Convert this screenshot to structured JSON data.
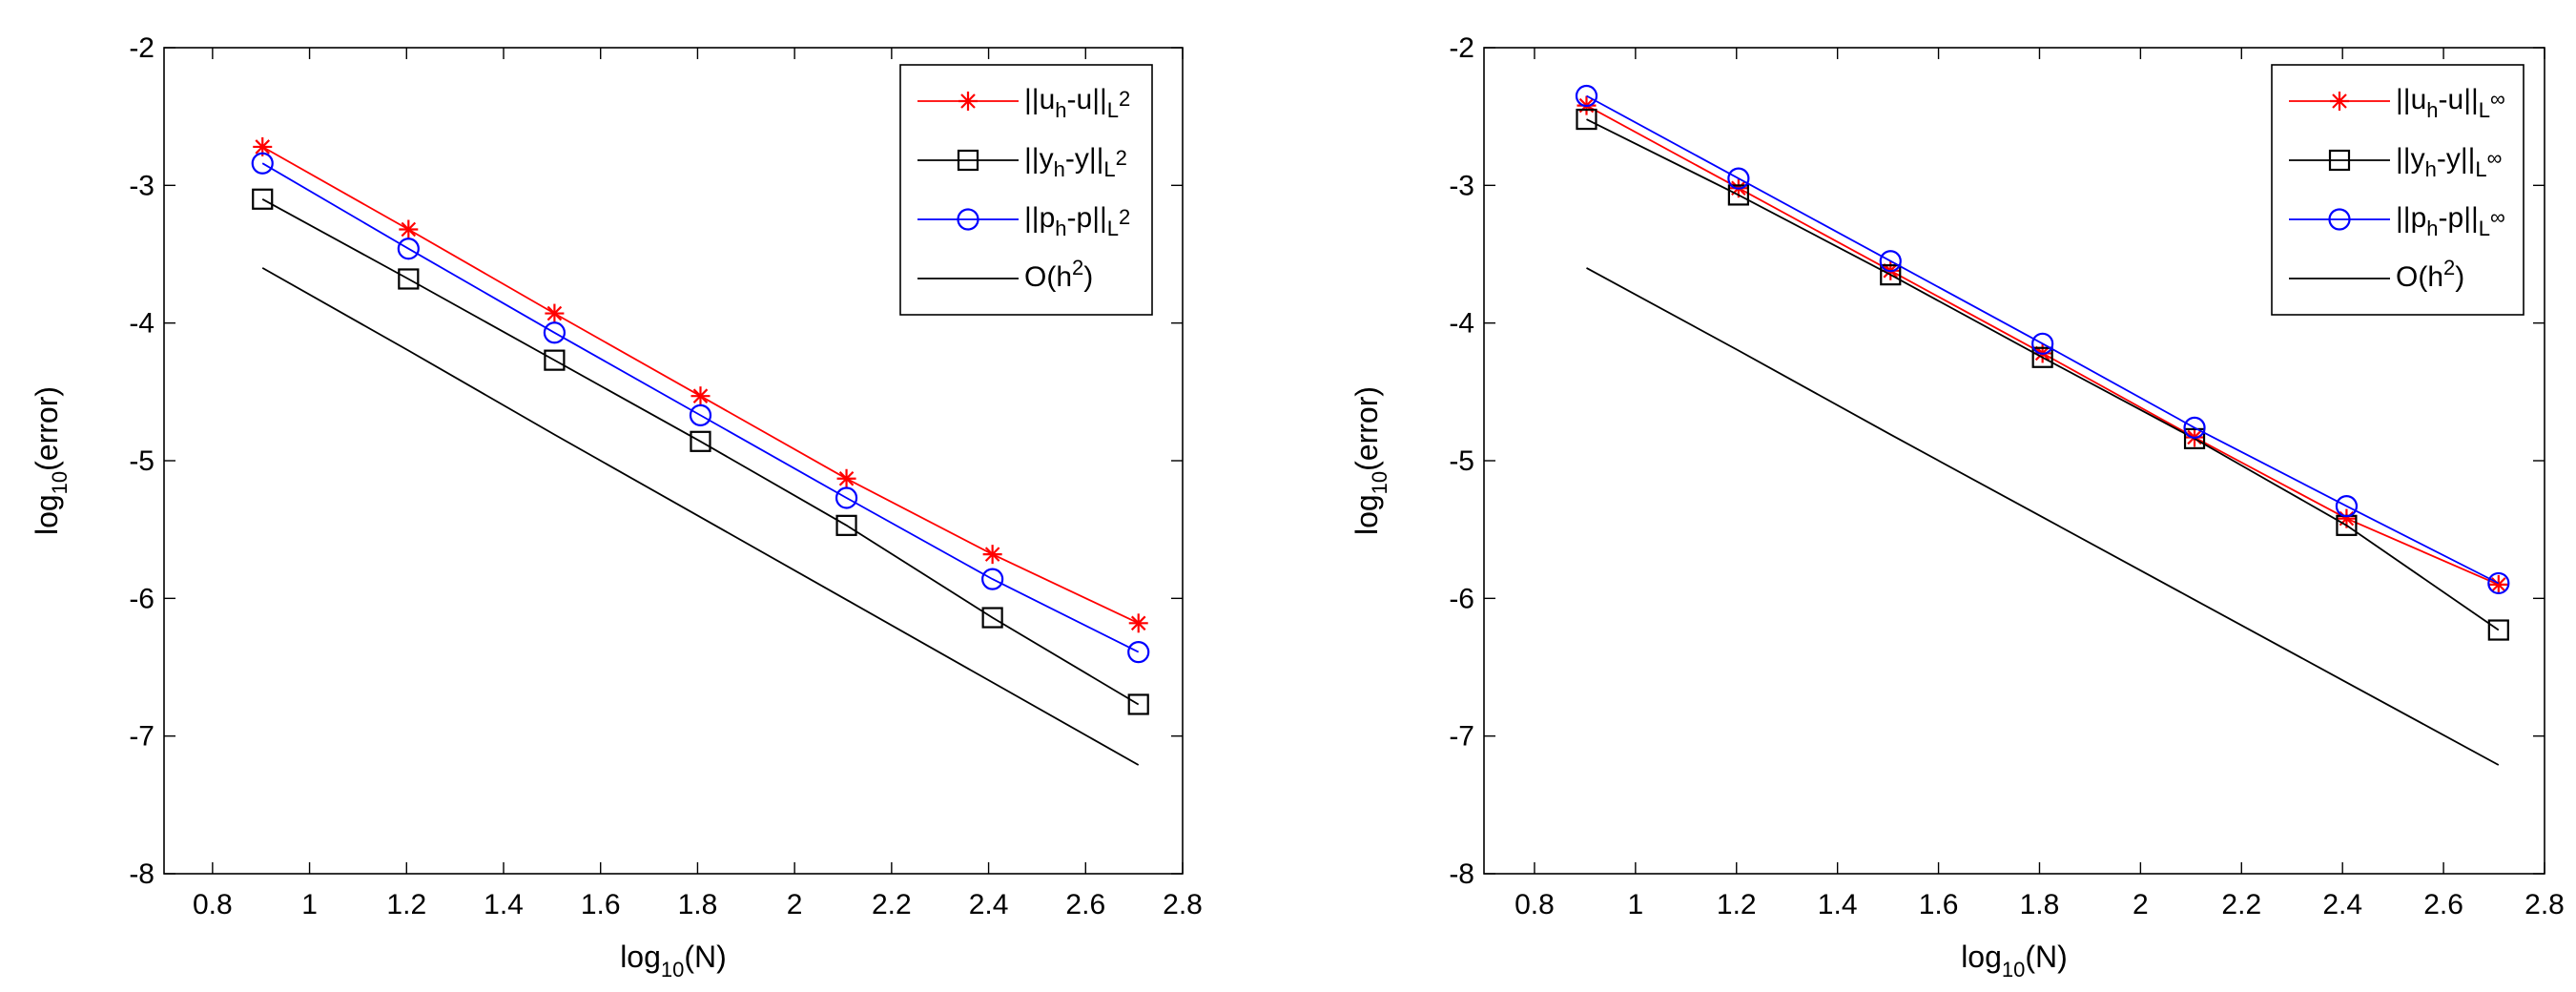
{
  "chart_data": [
    {
      "type": "line",
      "x": [
        0.903,
        1.204,
        1.505,
        1.806,
        2.107,
        2.408,
        2.709
      ],
      "xlim": [
        0.7,
        2.8
      ],
      "ylim": [
        -8,
        -2
      ],
      "xticks": [
        0.8,
        1,
        1.2,
        1.4,
        1.6,
        1.8,
        2,
        2.2,
        2.4,
        2.6,
        2.8
      ],
      "xtick_labels": [
        "0.8",
        "1",
        "1.2",
        "1.4",
        "1.6",
        "1.8",
        "2",
        "2.2",
        "2.4",
        "2.6",
        "2.8"
      ],
      "yticks": [
        -2,
        -3,
        -4,
        -5,
        -6,
        -7,
        -8
      ],
      "ytick_labels": [
        "-2",
        "-3",
        "-4",
        "-5",
        "-6",
        "-7",
        "-8"
      ],
      "xlabel": {
        "base": "log",
        "sub": "10",
        "rest": "(N)"
      },
      "ylabel": {
        "base": "log",
        "sub": "10",
        "rest": "(error)"
      },
      "grid": false,
      "legend_position": "top-right",
      "series": [
        {
          "name": "||u_h-u||_L2",
          "label_parts": [
            "||u",
            "h",
            "-u||",
            "L",
            "2"
          ],
          "color": "#ff0000",
          "marker": "asterisk",
          "values": [
            -2.72,
            -3.32,
            -3.93,
            -4.53,
            -5.13,
            -5.68,
            -6.18
          ]
        },
        {
          "name": "||y_h-y||_L2",
          "label_parts": [
            "||y",
            "h",
            "-y||",
            "L",
            "2"
          ],
          "color": "#000000",
          "marker": "square",
          "values": [
            -3.1,
            -3.68,
            -4.27,
            -4.86,
            -5.47,
            -6.14,
            -6.77
          ]
        },
        {
          "name": "||p_h-p||_L2",
          "label_parts": [
            "||p",
            "h",
            "-p||",
            "L",
            "2"
          ],
          "color": "#0000ff",
          "marker": "circle",
          "values": [
            -2.84,
            -3.46,
            -4.07,
            -4.67,
            -5.27,
            -5.86,
            -6.39
          ]
        },
        {
          "name": "O(h^2)",
          "label_parts": [
            "O(h",
            "2",
            ")"
          ],
          "color": "#000000",
          "marker": "none",
          "values": [
            -3.6,
            -4.2,
            -4.81,
            -5.41,
            -6.01,
            -6.61,
            -7.21
          ]
        }
      ]
    },
    {
      "type": "line",
      "x": [
        0.903,
        1.204,
        1.505,
        1.806,
        2.107,
        2.408,
        2.709
      ],
      "xlim": [
        0.7,
        2.8
      ],
      "ylim": [
        -8,
        -2
      ],
      "xticks": [
        0.8,
        1,
        1.2,
        1.4,
        1.6,
        1.8,
        2,
        2.2,
        2.4,
        2.6,
        2.8
      ],
      "xtick_labels": [
        "0.8",
        "1",
        "1.2",
        "1.4",
        "1.6",
        "1.8",
        "2",
        "2.2",
        "2.4",
        "2.6",
        "2.8"
      ],
      "yticks": [
        -2,
        -3,
        -4,
        -5,
        -6,
        -7,
        -8
      ],
      "ytick_labels": [
        "-2",
        "-3",
        "-4",
        "-5",
        "-6",
        "-7",
        "-8"
      ],
      "xlabel": {
        "base": "log",
        "sub": "10",
        "rest": "(N)"
      },
      "ylabel": {
        "base": "log",
        "sub": "10",
        "rest": "(error)"
      },
      "grid": false,
      "legend_position": "top-right",
      "series": [
        {
          "name": "||u_h-u||_L∞",
          "label_parts": [
            "||u",
            "h",
            "-u||",
            "L",
            "∞"
          ],
          "color": "#ff0000",
          "marker": "asterisk",
          "values": [
            -2.42,
            -3.02,
            -3.62,
            -4.22,
            -4.83,
            -5.42,
            -5.9
          ]
        },
        {
          "name": "||y_h-y||_L∞",
          "label_parts": [
            "||y",
            "h",
            "-y||",
            "L",
            "∞"
          ],
          "color": "#000000",
          "marker": "square",
          "values": [
            -2.52,
            -3.07,
            -3.65,
            -4.25,
            -4.84,
            -5.47,
            -6.23
          ]
        },
        {
          "name": "||p_h-p||_L∞",
          "label_parts": [
            "||p",
            "h",
            "-p||",
            "L",
            "∞"
          ],
          "color": "#0000ff",
          "marker": "circle",
          "values": [
            -2.35,
            -2.95,
            -3.55,
            -4.15,
            -4.76,
            -5.33,
            -5.89
          ]
        },
        {
          "name": "O(h^2)",
          "label_parts": [
            "O(h",
            "2",
            ")"
          ],
          "color": "#000000",
          "marker": "none",
          "values": [
            -3.6,
            -4.2,
            -4.81,
            -5.41,
            -6.01,
            -6.61,
            -7.21
          ]
        }
      ]
    }
  ]
}
